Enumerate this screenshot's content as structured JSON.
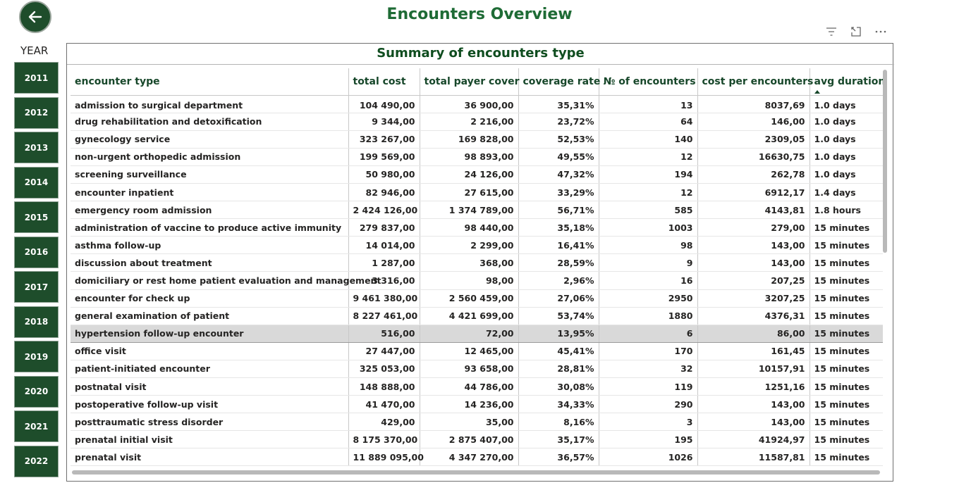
{
  "page": {
    "title": "Encounters Overview"
  },
  "nav": {
    "back_icon": "arrow-left-icon"
  },
  "visual_actions": [
    {
      "name": "filter-icon"
    },
    {
      "name": "focus-mode-icon"
    },
    {
      "name": "more-options-icon"
    }
  ],
  "slicer": {
    "label": "YEAR",
    "years": [
      "2011",
      "2012",
      "2013",
      "2014",
      "2015",
      "2016",
      "2017",
      "2018",
      "2019",
      "2020",
      "2021",
      "2022"
    ]
  },
  "table": {
    "title": "Summary of encounters type",
    "columns": [
      "encounter type",
      "total cost",
      "total payer cover",
      "coverage rate",
      "№ of encounters",
      "cost per encounters",
      "avg duration"
    ],
    "sorted_column_index": 6,
    "selected_row_index": 13,
    "rows": [
      [
        "admission to surgical department",
        "104 490,00",
        "36 900,00",
        "35,31%",
        "13",
        "8037,69",
        "1.0 days"
      ],
      [
        "drug rehabilitation and detoxification",
        "9 344,00",
        "2 216,00",
        "23,72%",
        "64",
        "146,00",
        "1.0 days"
      ],
      [
        "gynecology service",
        "323 267,00",
        "169 828,00",
        "52,53%",
        "140",
        "2309,05",
        "1.0 days"
      ],
      [
        "non-urgent orthopedic admission",
        "199 569,00",
        "98 893,00",
        "49,55%",
        "12",
        "16630,75",
        "1.0 days"
      ],
      [
        "screening surveillance",
        "50 980,00",
        "24 126,00",
        "47,32%",
        "194",
        "262,78",
        "1.0 days"
      ],
      [
        "encounter inpatient",
        "82 946,00",
        "27 615,00",
        "33,29%",
        "12",
        "6912,17",
        "1.4 days"
      ],
      [
        "emergency room admission",
        "2 424 126,00",
        "1 374 789,00",
        "56,71%",
        "585",
        "4143,81",
        "1.8 hours"
      ],
      [
        "administration of vaccine to produce active immunity",
        "279 837,00",
        "98 440,00",
        "35,18%",
        "1003",
        "279,00",
        "15 minutes"
      ],
      [
        "asthma follow-up",
        "14 014,00",
        "2 299,00",
        "16,41%",
        "98",
        "143,00",
        "15 minutes"
      ],
      [
        "discussion about treatment",
        "1 287,00",
        "368,00",
        "28,59%",
        "9",
        "143,00",
        "15 minutes"
      ],
      [
        "domiciliary or rest home patient evaluation and management",
        "3 316,00",
        "98,00",
        "2,96%",
        "16",
        "207,25",
        "15 minutes"
      ],
      [
        "encounter for check up",
        "9 461 380,00",
        "2 560 459,00",
        "27,06%",
        "2950",
        "3207,25",
        "15 minutes"
      ],
      [
        "general examination of patient",
        "8 227 461,00",
        "4 421 699,00",
        "53,74%",
        "1880",
        "4376,31",
        "15 minutes"
      ],
      [
        "hypertension follow-up encounter",
        "516,00",
        "72,00",
        "13,95%",
        "6",
        "86,00",
        "15 minutes"
      ],
      [
        "office visit",
        "27 447,00",
        "12 465,00",
        "45,41%",
        "170",
        "161,45",
        "15 minutes"
      ],
      [
        "patient-initiated encounter",
        "325 053,00",
        "93 658,00",
        "28,81%",
        "32",
        "10157,91",
        "15 minutes"
      ],
      [
        "postnatal visit",
        "148 888,00",
        "44 786,00",
        "30,08%",
        "119",
        "1251,16",
        "15 minutes"
      ],
      [
        "postoperative follow-up visit",
        "41 470,00",
        "14 236,00",
        "34,33%",
        "290",
        "143,00",
        "15 minutes"
      ],
      [
        "posttraumatic stress disorder",
        "429,00",
        "35,00",
        "8,16%",
        "3",
        "143,00",
        "15 minutes"
      ],
      [
        "prenatal initial visit",
        "8 175 370,00",
        "2 875 407,00",
        "35,17%",
        "195",
        "41924,97",
        "15 minutes"
      ],
      [
        "prenatal visit",
        "11 889 095,00",
        "4 347 270,00",
        "36,57%",
        "1026",
        "11587,81",
        "15 minutes"
      ]
    ]
  },
  "colors": {
    "accent": "#1e4d2b",
    "title_green": "#1e6b35",
    "header_green": "#17472a"
  }
}
